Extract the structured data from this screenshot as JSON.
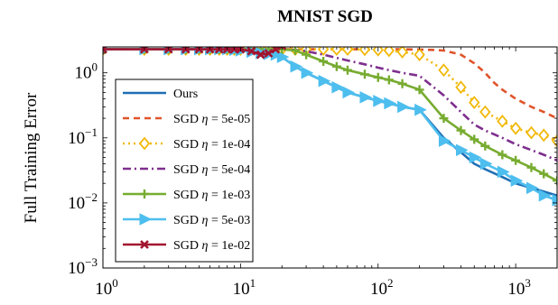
{
  "chart_data": {
    "type": "line",
    "title": "MNIST SGD",
    "xlabel": "",
    "ylabel": "Full Training Error",
    "x_scale": "log",
    "y_scale": "log",
    "xlim": [
      1,
      2000
    ],
    "ylim": [
      0.001,
      2.5
    ],
    "x_ticks": [
      {
        "value": 1,
        "base": "10",
        "exp": "0"
      },
      {
        "value": 10,
        "base": "10",
        "exp": "1"
      },
      {
        "value": 100,
        "base": "10",
        "exp": "2"
      },
      {
        "value": 1000,
        "base": "10",
        "exp": "3"
      }
    ],
    "y_ticks": [
      {
        "value": 1,
        "base": "10",
        "exp": "0"
      },
      {
        "value": 0.1,
        "base": "10",
        "exp": "−1"
      },
      {
        "value": 0.01,
        "base": "10",
        "exp": "−2"
      },
      {
        "value": 0.001,
        "base": "10",
        "exp": "−3"
      }
    ],
    "grid": false,
    "legend_position": "left",
    "legend_prefix": "SGD",
    "legend_symbol": "η",
    "series": [
      {
        "name": "Ours",
        "label_parts": null,
        "color": "#1f6fb4",
        "dash": "",
        "marker": "none",
        "x": [
          1,
          2,
          3,
          4,
          5,
          6,
          7,
          8,
          9,
          10,
          12,
          14,
          16,
          18,
          20,
          25,
          30,
          40,
          50,
          60,
          80,
          100,
          120,
          150,
          200,
          300,
          400,
          500,
          600,
          800,
          1000,
          1300,
          1600,
          2000
        ],
        "y": [
          2.3,
          2.3,
          2.3,
          2.3,
          2.3,
          2.3,
          2.3,
          2.3,
          2.25,
          2.2,
          2.1,
          2.0,
          1.95,
          1.9,
          1.75,
          1.25,
          1.0,
          0.75,
          0.6,
          0.5,
          0.42,
          0.37,
          0.34,
          0.3,
          0.27,
          0.1,
          0.06,
          0.04,
          0.033,
          0.025,
          0.02,
          0.017,
          0.015,
          0.013
        ]
      },
      {
        "name": "SGD η = 5e-05",
        "label_parts": {
          "value": "5e-05"
        },
        "color": "#e0542a",
        "dash": "7,5",
        "marker": "none",
        "x": [
          1,
          2,
          3,
          5,
          7,
          10,
          15,
          20,
          30,
          50,
          70,
          100,
          150,
          200,
          250,
          300,
          400,
          500,
          600,
          700,
          800,
          1000,
          1300,
          1600,
          2000
        ],
        "y": [
          2.3,
          2.3,
          2.3,
          2.3,
          2.3,
          2.3,
          2.3,
          2.3,
          2.3,
          2.3,
          2.3,
          2.3,
          2.3,
          2.28,
          2.25,
          2.2,
          1.9,
          1.4,
          1.0,
          0.7,
          0.55,
          0.4,
          0.3,
          0.25,
          0.2
        ]
      },
      {
        "name": "SGD η = 1e-04",
        "label_parts": {
          "value": "1e-04"
        },
        "color": "#f2b90a",
        "dash": "2,4",
        "marker": "diamond",
        "x": [
          1,
          2,
          3,
          4,
          5,
          6,
          7,
          8,
          9,
          10,
          12,
          14,
          16,
          18,
          20,
          25,
          30,
          40,
          50,
          60,
          80,
          100,
          120,
          150,
          200,
          300,
          400,
          500,
          600,
          800,
          1000,
          1300,
          1600,
          2000
        ],
        "y": [
          2.3,
          2.3,
          2.3,
          2.3,
          2.3,
          2.3,
          2.3,
          2.3,
          2.3,
          2.3,
          2.3,
          2.3,
          2.3,
          2.3,
          2.3,
          2.3,
          2.3,
          2.3,
          2.3,
          2.3,
          2.28,
          2.25,
          2.2,
          2.1,
          1.9,
          1.1,
          0.6,
          0.35,
          0.25,
          0.18,
          0.14,
          0.12,
          0.11,
          0.09
        ]
      },
      {
        "name": "SGD η = 5e-04",
        "label_parts": {
          "value": "5e-04"
        },
        "color": "#7e2f8e",
        "dash": "9,4,2,4",
        "marker": "none",
        "x": [
          1,
          2,
          3,
          5,
          7,
          10,
          15,
          20,
          25,
          30,
          40,
          50,
          60,
          80,
          100,
          120,
          150,
          200,
          300,
          400,
          500,
          600,
          800,
          1000,
          1300,
          1600,
          2000
        ],
        "y": [
          2.3,
          2.3,
          2.3,
          2.3,
          2.3,
          2.3,
          2.3,
          2.3,
          2.25,
          2.15,
          1.9,
          1.7,
          1.55,
          1.35,
          1.2,
          1.1,
          1.0,
          0.9,
          0.45,
          0.25,
          0.16,
          0.13,
          0.1,
          0.08,
          0.065,
          0.055,
          0.045
        ]
      },
      {
        "name": "SGD η = 1e-03",
        "label_parts": {
          "value": "1e-03"
        },
        "color": "#77ac30",
        "dash": "",
        "marker": "plus",
        "x": [
          1,
          2,
          3,
          4,
          5,
          6,
          7,
          8,
          9,
          10,
          12,
          14,
          16,
          18,
          20,
          25,
          30,
          40,
          50,
          60,
          80,
          100,
          120,
          150,
          200,
          300,
          400,
          500,
          600,
          800,
          1000,
          1300,
          1600,
          2000
        ],
        "y": [
          2.3,
          2.3,
          2.3,
          2.3,
          2.3,
          2.3,
          2.3,
          2.3,
          2.3,
          2.3,
          2.3,
          2.3,
          2.3,
          2.3,
          2.3,
          2.2,
          1.9,
          1.5,
          1.25,
          1.1,
          0.95,
          0.85,
          0.78,
          0.68,
          0.55,
          0.2,
          0.13,
          0.095,
          0.075,
          0.055,
          0.045,
          0.035,
          0.028,
          0.022
        ]
      },
      {
        "name": "SGD η = 5e-03",
        "label_parts": {
          "value": "5e-03"
        },
        "color": "#4dbeee",
        "dash": "",
        "marker": "triangle",
        "x": [
          1,
          2,
          3,
          4,
          5,
          6,
          7,
          8,
          9,
          10,
          12,
          14,
          16,
          18,
          20,
          25,
          30,
          40,
          50,
          60,
          80,
          100,
          120,
          150,
          200,
          300,
          400,
          500,
          600,
          800,
          1000,
          1300,
          1600,
          2000
        ],
        "y": [
          2.3,
          2.3,
          2.3,
          2.3,
          2.3,
          2.3,
          2.3,
          2.3,
          2.25,
          2.2,
          2.1,
          2.0,
          1.95,
          1.9,
          1.75,
          1.25,
          1.0,
          0.75,
          0.6,
          0.5,
          0.42,
          0.37,
          0.34,
          0.3,
          0.27,
          0.09,
          0.065,
          0.05,
          0.04,
          0.03,
          0.022,
          0.017,
          0.013,
          0.011
        ]
      },
      {
        "name": "SGD η = 1e-02",
        "label_parts": {
          "value": "1e-02"
        },
        "color": "#a2142f",
        "dash": "",
        "marker": "x",
        "x": [
          1,
          2,
          3,
          4,
          5,
          6,
          7,
          8,
          9,
          10,
          12,
          14,
          16,
          18,
          20,
          22
        ],
        "y": [
          2.3,
          2.3,
          2.3,
          2.3,
          2.3,
          2.3,
          2.3,
          2.3,
          2.3,
          2.3,
          2.15,
          1.9,
          2.0,
          2.3,
          2.6,
          2.8
        ]
      }
    ]
  }
}
